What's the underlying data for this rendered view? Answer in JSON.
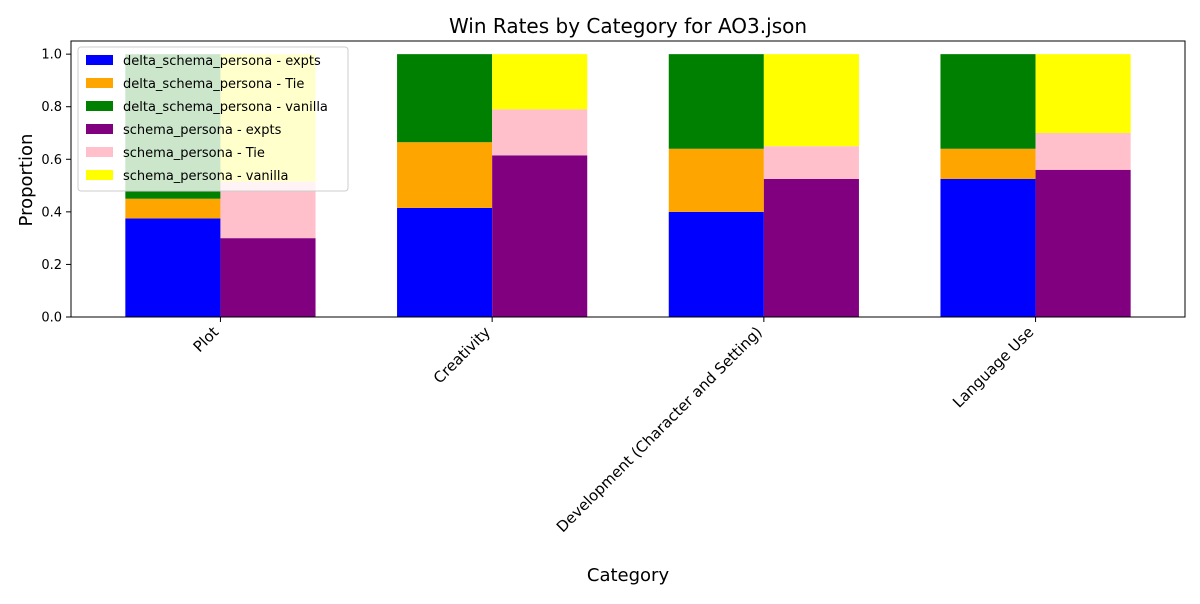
{
  "chart_data": {
    "type": "bar",
    "stacked": true,
    "grouped": true,
    "title": "Win Rates by Category for AO3.json",
    "xlabel": "Category",
    "ylabel": "Proportion",
    "ylim": [
      0,
      1.05
    ],
    "yticks": [
      0.0,
      0.2,
      0.4,
      0.6,
      0.8,
      1.0
    ],
    "ytick_labels": [
      "0.0",
      "0.2",
      "0.4",
      "0.6",
      "0.8",
      "1.0"
    ],
    "categories": [
      "Plot",
      "Creativity",
      "Development (Character and Setting)",
      "Language Use"
    ],
    "grid": false,
    "legend_position": "upper-left",
    "groups": [
      {
        "name": "delta_schema_persona",
        "series": [
          {
            "name": "delta_schema_persona - expts",
            "color": "#0000ff",
            "values": [
              0.375,
              0.415,
              0.4,
              0.525
            ]
          },
          {
            "name": "delta_schema_persona - Tie",
            "color": "#ffa500",
            "values": [
              0.075,
              0.25,
              0.24,
              0.115
            ]
          },
          {
            "name": "delta_schema_persona - vanilla",
            "color": "#008000",
            "values": [
              0.55,
              0.335,
              0.36,
              0.36
            ]
          }
        ]
      },
      {
        "name": "schema_persona",
        "series": [
          {
            "name": "schema_persona - expts",
            "color": "#800080",
            "values": [
              0.3,
              0.615,
              0.525,
              0.56
            ]
          },
          {
            "name": "schema_persona - Tie",
            "color": "#ffc0cb",
            "values": [
              0.215,
              0.175,
              0.125,
              0.14
            ]
          },
          {
            "name": "schema_persona - vanilla",
            "color": "#ffff00",
            "values": [
              0.485,
              0.21,
              0.35,
              0.3
            ]
          }
        ]
      }
    ]
  }
}
